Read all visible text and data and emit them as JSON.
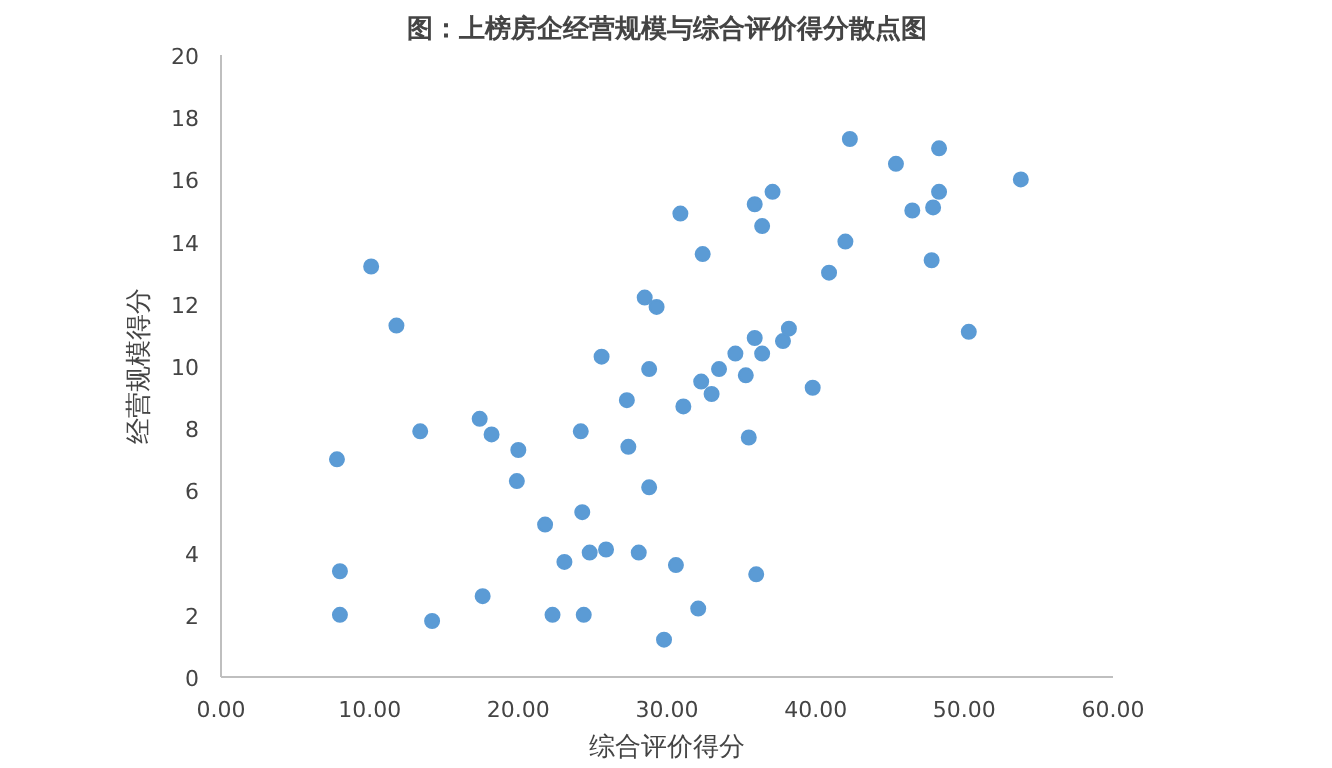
{
  "chart_data": {
    "type": "scatter",
    "title": "图：上榜房企经营规模与综合评价得分散点图",
    "xlabel": "综合评价得分",
    "ylabel": "经营规模得分",
    "x": [
      10.1,
      11.8,
      13.4,
      7.8,
      8.0,
      8.0,
      14.2,
      17.4,
      18.2,
      20.0,
      19.9,
      17.6,
      21.8,
      22.3,
      23.1,
      24.2,
      24.3,
      24.8,
      25.9,
      24.4,
      25.6,
      27.3,
      27.4,
      28.8,
      28.8,
      28.1,
      29.8,
      28.5,
      29.3,
      30.9,
      30.6,
      32.4,
      32.1,
      31.1,
      32.3,
      33.0,
      33.5,
      34.6,
      35.3,
      35.9,
      36.4,
      35.5,
      36.0,
      35.9,
      37.1,
      36.4,
      37.8,
      38.2,
      39.8,
      40.9,
      42.0,
      42.3,
      45.4,
      46.5,
      47.8,
      47.9,
      48.3,
      48.3,
      50.3,
      53.8
    ],
    "series": [
      {
        "color": "#5b9bd5",
        "values": [
          13.2,
          11.3,
          7.9,
          7.0,
          3.4,
          2.0,
          1.8,
          8.3,
          7.8,
          7.3,
          6.3,
          2.6,
          4.9,
          2.0,
          3.7,
          7.9,
          5.3,
          4.0,
          4.1,
          2.0,
          10.3,
          8.9,
          7.4,
          9.9,
          6.1,
          4.0,
          1.2,
          12.2,
          11.9,
          14.9,
          3.6,
          13.6,
          2.2,
          8.7,
          9.5,
          9.1,
          9.9,
          10.4,
          9.7,
          10.9,
          10.4,
          7.7,
          3.3,
          15.2,
          15.6,
          14.5,
          10.8,
          11.2,
          9.3,
          13.0,
          14.0,
          17.3,
          16.5,
          15.0,
          13.4,
          15.1,
          15.6,
          17.0,
          11.1,
          16.0
        ]
      }
    ],
    "xlim": [
      0,
      60
    ],
    "xticks": [
      {
        "value": 0,
        "label": "0.00"
      },
      {
        "value": 10,
        "label": "10.00"
      },
      {
        "value": 20,
        "label": "20.00"
      },
      {
        "value": 30,
        "label": "30.00"
      },
      {
        "value": 40,
        "label": "40.00"
      },
      {
        "value": 50,
        "label": "50.00"
      },
      {
        "value": 60,
        "label": "60.00"
      }
    ],
    "ylim": [
      0,
      20
    ],
    "yticks": [
      0,
      2,
      4,
      6,
      8,
      10,
      12,
      14,
      16,
      18,
      20
    ],
    "marker": "circle",
    "grid": false
  }
}
